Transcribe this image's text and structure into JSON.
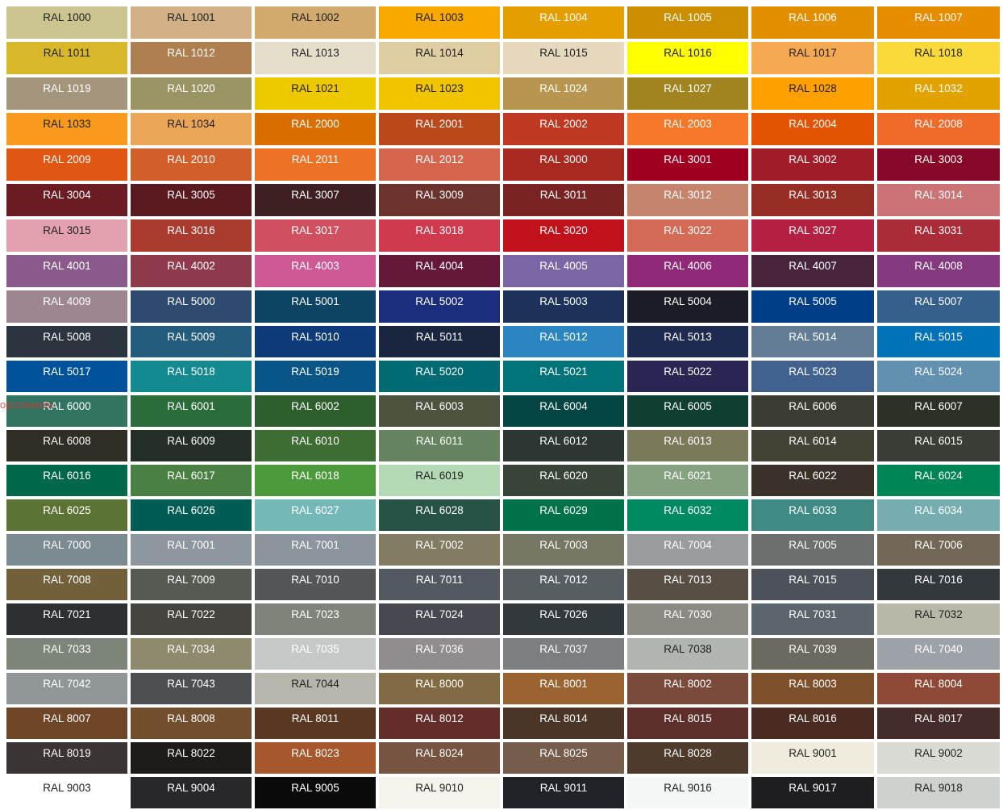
{
  "watermark": "ogrzewanie",
  "swatches": [
    {
      "label": "RAL 1000",
      "color": "#CDC58F",
      "text": "#222"
    },
    {
      "label": "RAL 1001",
      "color": "#D0B084",
      "text": "#222"
    },
    {
      "label": "RAL 1002",
      "color": "#D2AA6D",
      "text": "#222"
    },
    {
      "label": "RAL 1003",
      "color": "#F9A800",
      "text": "#222"
    },
    {
      "label": "RAL 1004",
      "color": "#E49E00",
      "text": "#fff"
    },
    {
      "label": "RAL 1005",
      "color": "#CB8E00",
      "text": "#fff"
    },
    {
      "label": "RAL 1006",
      "color": "#E29000",
      "text": "#fff"
    },
    {
      "label": "RAL 1007",
      "color": "#E88C00",
      "text": "#fff"
    },
    {
      "label": "RAL 1011",
      "color": "#D8B82A",
      "text": "#222"
    },
    {
      "label": "RAL 1012",
      "color": "#AF804F",
      "text": "#fff"
    },
    {
      "label": "RAL 1013",
      "color": "#E5DECB",
      "text": "#222"
    },
    {
      "label": "RAL 1014",
      "color": "#DFCEA1",
      "text": "#222"
    },
    {
      "label": "RAL 1015",
      "color": "#E6D9BD",
      "text": "#222"
    },
    {
      "label": "RAL 1016",
      "color": "#FFFF00",
      "text": "#222"
    },
    {
      "label": "RAL 1017",
      "color": "#F6A950",
      "text": "#222"
    },
    {
      "label": "RAL 1018",
      "color": "#FAD93A",
      "text": "#222"
    },
    {
      "label": "RAL 1019",
      "color": "#A4957D",
      "text": "#fff"
    },
    {
      "label": "RAL 1020",
      "color": "#9A9464",
      "text": "#fff"
    },
    {
      "label": "RAL 1021",
      "color": "#EEC900",
      "text": "#222"
    },
    {
      "label": "RAL 1023",
      "color": "#F0C500",
      "text": "#222"
    },
    {
      "label": "RAL 1024",
      "color": "#B89650",
      "text": "#fff"
    },
    {
      "label": "RAL 1027",
      "color": "#A08520",
      "text": "#fff"
    },
    {
      "label": "RAL 1028",
      "color": "#FFA000",
      "text": "#222"
    },
    {
      "label": "RAL 1032",
      "color": "#E2A300",
      "text": "#fff"
    },
    {
      "label": "RAL 1033",
      "color": "#F99A1C",
      "text": "#222"
    },
    {
      "label": "RAL 1034",
      "color": "#EBA557",
      "text": "#222"
    },
    {
      "label": "RAL 2000",
      "color": "#DA6E00",
      "text": "#fff"
    },
    {
      "label": "RAL 2001",
      "color": "#BA481B",
      "text": "#fff"
    },
    {
      "label": "RAL 2002",
      "color": "#BF3922",
      "text": "#fff"
    },
    {
      "label": "RAL 2003",
      "color": "#F67828",
      "text": "#fff"
    },
    {
      "label": "RAL 2004",
      "color": "#E25303",
      "text": "#fff"
    },
    {
      "label": "RAL 2008",
      "color": "#F06B2A",
      "text": "#fff"
    },
    {
      "label": "RAL 2009",
      "color": "#E05613",
      "text": "#fff"
    },
    {
      "label": "RAL 2010",
      "color": "#D25F2A",
      "text": "#fff"
    },
    {
      "label": "RAL 2011",
      "color": "#EC7326",
      "text": "#fff"
    },
    {
      "label": "RAL 2012",
      "color": "#D5654D",
      "text": "#fff"
    },
    {
      "label": "RAL 3000",
      "color": "#A72920",
      "text": "#fff"
    },
    {
      "label": "RAL 3001",
      "color": "#A00020",
      "text": "#fff"
    },
    {
      "label": "RAL 3002",
      "color": "#A01C28",
      "text": "#fff"
    },
    {
      "label": "RAL 3003",
      "color": "#860A28",
      "text": "#fff"
    },
    {
      "label": "RAL 3004",
      "color": "#6B1C23",
      "text": "#fff"
    },
    {
      "label": "RAL 3005",
      "color": "#59191F",
      "text": "#fff"
    },
    {
      "label": "RAL 3007",
      "color": "#3E2022",
      "text": "#fff"
    },
    {
      "label": "RAL 3009",
      "color": "#6D342D",
      "text": "#fff"
    },
    {
      "label": "RAL 3011",
      "color": "#792423",
      "text": "#fff"
    },
    {
      "label": "RAL 3012",
      "color": "#C6846D",
      "text": "#fff"
    },
    {
      "label": "RAL 3013",
      "color": "#972E25",
      "text": "#fff"
    },
    {
      "label": "RAL 3014",
      "color": "#CB7375",
      "text": "#fff"
    },
    {
      "label": "RAL 3015",
      "color": "#E3A0AE",
      "text": "#222"
    },
    {
      "label": "RAL 3016",
      "color": "#AC3B2F",
      "text": "#fff"
    },
    {
      "label": "RAL 3017",
      "color": "#D05060",
      "text": "#fff"
    },
    {
      "label": "RAL 3018",
      "color": "#CF3A4E",
      "text": "#fff"
    },
    {
      "label": "RAL 3020",
      "color": "#C1121C",
      "text": "#fff"
    },
    {
      "label": "RAL 3022",
      "color": "#D36B56",
      "text": "#fff"
    },
    {
      "label": "RAL 3027",
      "color": "#B42041",
      "text": "#fff"
    },
    {
      "label": "RAL 3031",
      "color": "#A92C38",
      "text": "#fff"
    },
    {
      "label": "RAL 4001",
      "color": "#8A5A8A",
      "text": "#fff"
    },
    {
      "label": "RAL 4002",
      "color": "#8F3B4B",
      "text": "#fff"
    },
    {
      "label": "RAL 4003",
      "color": "#CE5994",
      "text": "#fff"
    },
    {
      "label": "RAL 4004",
      "color": "#661838",
      "text": "#fff"
    },
    {
      "label": "RAL 4005",
      "color": "#7B66A5",
      "text": "#fff"
    },
    {
      "label": "RAL 4006",
      "color": "#902A78",
      "text": "#fff"
    },
    {
      "label": "RAL 4007",
      "color": "#47243C",
      "text": "#fff"
    },
    {
      "label": "RAL 4008",
      "color": "#853A80",
      "text": "#fff"
    },
    {
      "label": "RAL 4009",
      "color": "#9D8692",
      "text": "#fff"
    },
    {
      "label": "RAL 5000",
      "color": "#2F4A70",
      "text": "#fff"
    },
    {
      "label": "RAL 5001",
      "color": "#0E4463",
      "text": "#fff"
    },
    {
      "label": "RAL 5002",
      "color": "#1B2E7E",
      "text": "#fff"
    },
    {
      "label": "RAL 5003",
      "color": "#1D325A",
      "text": "#fff"
    },
    {
      "label": "RAL 5004",
      "color": "#1A1D26",
      "text": "#fff"
    },
    {
      "label": "RAL 5005",
      "color": "#003F88",
      "text": "#fff"
    },
    {
      "label": "RAL 5007",
      "color": "#36608C",
      "text": "#fff"
    },
    {
      "label": "RAL 5008",
      "color": "#2B3540",
      "text": "#fff"
    },
    {
      "label": "RAL 5009",
      "color": "#245C7E",
      "text": "#fff"
    },
    {
      "label": "RAL 5010",
      "color": "#0D3B7A",
      "text": "#fff"
    },
    {
      "label": "RAL 5011",
      "color": "#1A2540",
      "text": "#fff"
    },
    {
      "label": "RAL 5012",
      "color": "#2A85C0",
      "text": "#fff"
    },
    {
      "label": "RAL 5013",
      "color": "#1F2A50",
      "text": "#fff"
    },
    {
      "label": "RAL 5014",
      "color": "#637D96",
      "text": "#fff"
    },
    {
      "label": "RAL 5015",
      "color": "#0072B8",
      "text": "#fff"
    },
    {
      "label": "RAL 5017",
      "color": "#00529A",
      "text": "#fff"
    },
    {
      "label": "RAL 5018",
      "color": "#128A90",
      "text": "#fff"
    },
    {
      "label": "RAL 5019",
      "color": "#0A5588",
      "text": "#fff"
    },
    {
      "label": "RAL 5020",
      "color": "#006B73",
      "text": "#fff"
    },
    {
      "label": "RAL 5021",
      "color": "#007478",
      "text": "#fff"
    },
    {
      "label": "RAL 5022",
      "color": "#292653",
      "text": "#fff"
    },
    {
      "label": "RAL 5023",
      "color": "#41628E",
      "text": "#fff"
    },
    {
      "label": "RAL 5024",
      "color": "#6190B0",
      "text": "#fff"
    },
    {
      "label": "RAL 6000",
      "color": "#327462",
      "text": "#fff"
    },
    {
      "label": "RAL 6001",
      "color": "#2A6C3A",
      "text": "#fff"
    },
    {
      "label": "RAL 6002",
      "color": "#2D5E2C",
      "text": "#fff"
    },
    {
      "label": "RAL 6003",
      "color": "#4E5340",
      "text": "#fff"
    },
    {
      "label": "RAL 6004",
      "color": "#024543",
      "text": "#fff"
    },
    {
      "label": "RAL 6005",
      "color": "#0F3F32",
      "text": "#fff"
    },
    {
      "label": "RAL 6006",
      "color": "#3B3D33",
      "text": "#fff"
    },
    {
      "label": "RAL 6007",
      "color": "#2B3125",
      "text": "#fff"
    },
    {
      "label": "RAL 6008",
      "color": "#302E24",
      "text": "#fff"
    },
    {
      "label": "RAL 6009",
      "color": "#222E26",
      "text": "#fff"
    },
    {
      "label": "RAL 6010",
      "color": "#3E6D33",
      "text": "#fff"
    },
    {
      "label": "RAL 6011",
      "color": "#678460",
      "text": "#fff"
    },
    {
      "label": "RAL 6012",
      "color": "#2C3733",
      "text": "#fff"
    },
    {
      "label": "RAL 6013",
      "color": "#7A7A5A",
      "text": "#fff"
    },
    {
      "label": "RAL 6014",
      "color": "#444234",
      "text": "#fff"
    },
    {
      "label": "RAL 6015",
      "color": "#3A3D36",
      "text": "#fff"
    },
    {
      "label": "RAL 6016",
      "color": "#00684A",
      "text": "#fff"
    },
    {
      "label": "RAL 6017",
      "color": "#4A8043",
      "text": "#fff"
    },
    {
      "label": "RAL 6018",
      "color": "#4B9A3C",
      "text": "#fff"
    },
    {
      "label": "RAL 6019",
      "color": "#B3D9B5",
      "text": "#222"
    },
    {
      "label": "RAL 6020",
      "color": "#374538",
      "text": "#fff"
    },
    {
      "label": "RAL 6021",
      "color": "#86A180",
      "text": "#fff"
    },
    {
      "label": "RAL 6022",
      "color": "#3A3129",
      "text": "#fff"
    },
    {
      "label": "RAL 6024",
      "color": "#008556",
      "text": "#fff"
    },
    {
      "label": "RAL 6025",
      "color": "#5C7433",
      "text": "#fff"
    },
    {
      "label": "RAL 6026",
      "color": "#005D56",
      "text": "#fff"
    },
    {
      "label": "RAL 6027",
      "color": "#75B8B8",
      "text": "#fff"
    },
    {
      "label": "RAL 6028",
      "color": "#275346",
      "text": "#fff"
    },
    {
      "label": "RAL 6029",
      "color": "#00724A",
      "text": "#fff"
    },
    {
      "label": "RAL 6032",
      "color": "#008A62",
      "text": "#fff"
    },
    {
      "label": "RAL 6033",
      "color": "#3F8A84",
      "text": "#fff"
    },
    {
      "label": "RAL 6034",
      "color": "#76ADB0",
      "text": "#fff"
    },
    {
      "label": "RAL 7000",
      "color": "#7C8B92",
      "text": "#fff"
    },
    {
      "label": "RAL 7001",
      "color": "#8D979F",
      "text": "#fff"
    },
    {
      "label": "RAL 7001",
      "color": "#8A959D",
      "text": "#fff"
    },
    {
      "label": "RAL 7002",
      "color": "#827C62",
      "text": "#fff"
    },
    {
      "label": "RAL 7003",
      "color": "#787665",
      "text": "#fff"
    },
    {
      "label": "RAL 7004",
      "color": "#9A9B9F",
      "text": "#fff"
    },
    {
      "label": "RAL 7005",
      "color": "#6C6F6E",
      "text": "#fff"
    },
    {
      "label": "RAL 7006",
      "color": "#736858",
      "text": "#fff"
    },
    {
      "label": "RAL 7008",
      "color": "#72603A",
      "text": "#fff"
    },
    {
      "label": "RAL 7009",
      "color": "#555A52",
      "text": "#fff"
    },
    {
      "label": "RAL 7010",
      "color": "#54565A",
      "text": "#fff"
    },
    {
      "label": "RAL 7011",
      "color": "#525960",
      "text": "#fff"
    },
    {
      "label": "RAL 7012",
      "color": "#575E62",
      "text": "#fff"
    },
    {
      "label": "RAL 7013",
      "color": "#574F43",
      "text": "#fff"
    },
    {
      "label": "RAL 7015",
      "color": "#4D5159",
      "text": "#fff"
    },
    {
      "label": "RAL 7016",
      "color": "#33383D",
      "text": "#fff"
    },
    {
      "label": "RAL 7021",
      "color": "#2D3033",
      "text": "#fff"
    },
    {
      "label": "RAL 7022",
      "color": "#46443F",
      "text": "#fff"
    },
    {
      "label": "RAL 7023",
      "color": "#80837A",
      "text": "#fff"
    },
    {
      "label": "RAL 7024",
      "color": "#46494F",
      "text": "#fff"
    },
    {
      "label": "RAL 7026",
      "color": "#32393C",
      "text": "#fff"
    },
    {
      "label": "RAL 7030",
      "color": "#8C8A82",
      "text": "#fff"
    },
    {
      "label": "RAL 7031",
      "color": "#5A666C",
      "text": "#fff"
    },
    {
      "label": "RAL 7032",
      "color": "#B8B7A8",
      "text": "#222"
    },
    {
      "label": "RAL 7033",
      "color": "#7D8578",
      "text": "#fff"
    },
    {
      "label": "RAL 7034",
      "color": "#8E8A6E",
      "text": "#fff"
    },
    {
      "label": "RAL 7035",
      "color": "#C5C9C8",
      "text": "#fff"
    },
    {
      "label": "RAL 7036",
      "color": "#8F8D8E",
      "text": "#fff"
    },
    {
      "label": "RAL 7037",
      "color": "#7C7E80",
      "text": "#fff"
    },
    {
      "label": "RAL 7038",
      "color": "#B2B4AF",
      "text": "#222"
    },
    {
      "label": "RAL 7039",
      "color": "#6C6960",
      "text": "#fff"
    },
    {
      "label": "RAL 7040",
      "color": "#9DA2A8",
      "text": "#fff"
    },
    {
      "label": "RAL 7042",
      "color": "#909598",
      "text": "#fff"
    },
    {
      "label": "RAL 7043",
      "color": "#4D5052",
      "text": "#fff"
    },
    {
      "label": "RAL 7044",
      "color": "#B8B6AB",
      "text": "#222"
    },
    {
      "label": "RAL 8000",
      "color": "#826A42",
      "text": "#fff"
    },
    {
      "label": "RAL 8001",
      "color": "#9A6430",
      "text": "#fff"
    },
    {
      "label": "RAL 8002",
      "color": "#7A4A3A",
      "text": "#fff"
    },
    {
      "label": "RAL 8003",
      "color": "#7E4F2B",
      "text": "#fff"
    },
    {
      "label": "RAL 8004",
      "color": "#8E4A36",
      "text": "#fff"
    },
    {
      "label": "RAL 8007",
      "color": "#6E4527",
      "text": "#fff"
    },
    {
      "label": "RAL 8008",
      "color": "#714E2C",
      "text": "#fff"
    },
    {
      "label": "RAL 8011",
      "color": "#5A3822",
      "text": "#fff"
    },
    {
      "label": "RAL 8012",
      "color": "#632D2A",
      "text": "#fff"
    },
    {
      "label": "RAL 8014",
      "color": "#4A3526",
      "text": "#fff"
    },
    {
      "label": "RAL 8015",
      "color": "#5E2F2A",
      "text": "#fff"
    },
    {
      "label": "RAL 8016",
      "color": "#4A2B22",
      "text": "#fff"
    },
    {
      "label": "RAL 8017",
      "color": "#452C28",
      "text": "#fff"
    },
    {
      "label": "RAL 8019",
      "color": "#3B3435",
      "text": "#fff"
    },
    {
      "label": "RAL 8022",
      "color": "#1D1B1A",
      "text": "#fff"
    },
    {
      "label": "RAL 8023",
      "color": "#A5582C",
      "text": "#fff"
    },
    {
      "label": "RAL 8024",
      "color": "#775341",
      "text": "#fff"
    },
    {
      "label": "RAL 8025",
      "color": "#755C4B",
      "text": "#fff"
    },
    {
      "label": "RAL 8028",
      "color": "#4E3B2B",
      "text": "#fff"
    },
    {
      "label": "RAL 9001",
      "color": "#EFEBDD",
      "text": "#222"
    },
    {
      "label": "RAL 9002",
      "color": "#DADBD4",
      "text": "#222"
    },
    {
      "label": "RAL 9003",
      "color": "#FFFFFF",
      "text": "#222"
    },
    {
      "label": "RAL 9004",
      "color": "#28282B",
      "text": "#fff"
    },
    {
      "label": "RAL 9005",
      "color": "#0A0A0A",
      "text": "#fff"
    },
    {
      "label": "RAL 9010",
      "color": "#F5F3EC",
      "text": "#222"
    },
    {
      "label": "RAL 9011",
      "color": "#1F2327",
      "text": "#fff"
    },
    {
      "label": "RAL 9016",
      "color": "#F5F6F6",
      "text": "#222"
    },
    {
      "label": "RAL 9017",
      "color": "#1E1E20",
      "text": "#fff"
    },
    {
      "label": "RAL 9018",
      "color": "#CDD2CF",
      "text": "#222"
    }
  ]
}
